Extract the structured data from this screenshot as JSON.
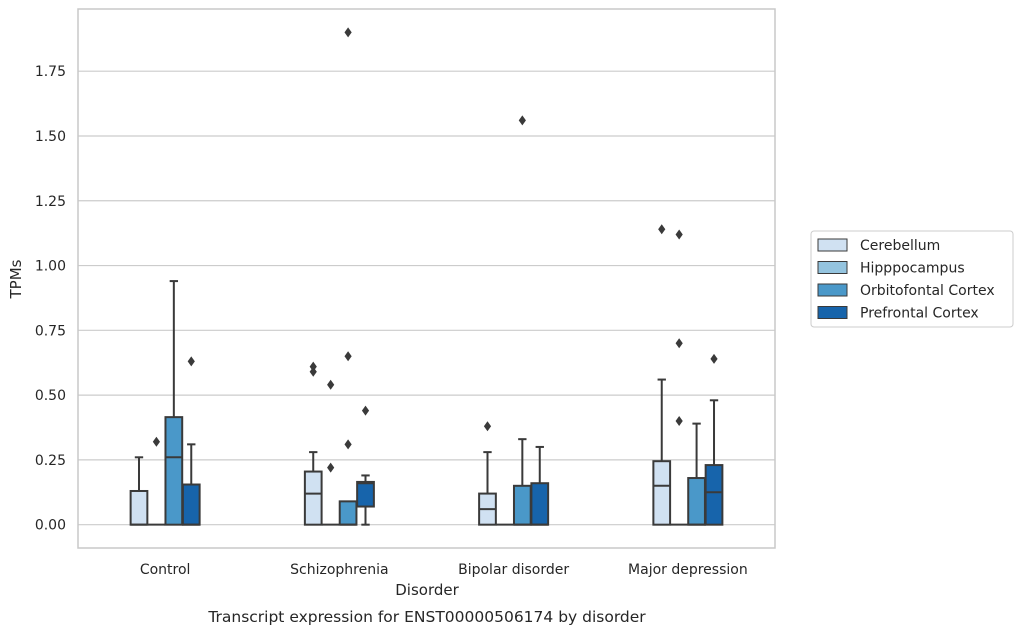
{
  "chart_data": {
    "type": "box",
    "caption": "Transcript expression for ENST00000506174 by disorder",
    "xlabel": "Disorder",
    "ylabel": "TPMs",
    "ylim": [
      -0.09,
      1.99
    ],
    "yticks": [
      "0.00",
      "0.25",
      "0.50",
      "0.75",
      "1.00",
      "1.25",
      "1.50",
      "1.75"
    ],
    "ytick_values": [
      0,
      0.25,
      0.5,
      0.75,
      1.0,
      1.25,
      1.5,
      1.75
    ],
    "grid": true,
    "legend_position": "right",
    "categories": [
      "Control",
      "Schizophrenia",
      "Bipolar disorder",
      "Major depression"
    ],
    "series": [
      {
        "name": "Cerebellum",
        "color": "#d0e1f2",
        "boxes": [
          {
            "q1": 0,
            "median": 0,
            "q3": 0.13,
            "whisker_low": 0,
            "whisker_high": 0.26,
            "outliers": []
          },
          {
            "q1": 0,
            "median": 0.12,
            "q3": 0.205,
            "whisker_low": 0,
            "whisker_high": 0.28,
            "outliers": [
              0.59,
              0.61
            ]
          },
          {
            "q1": 0,
            "median": 0.06,
            "q3": 0.12,
            "whisker_low": 0,
            "whisker_high": 0.28,
            "outliers": [
              0.38
            ]
          },
          {
            "q1": 0,
            "median": 0.15,
            "q3": 0.245,
            "whisker_low": 0,
            "whisker_high": 0.56,
            "outliers": [
              1.14
            ]
          }
        ]
      },
      {
        "name": "Hipppocampus",
        "color": "#94c4df",
        "boxes": [
          {
            "q1": 0,
            "median": 0,
            "q3": 0,
            "whisker_low": 0,
            "whisker_high": 0,
            "outliers": [
              0.32
            ]
          },
          {
            "q1": 0,
            "median": 0,
            "q3": 0,
            "whisker_low": 0,
            "whisker_high": 0,
            "outliers": [
              0.22,
              0.54
            ]
          },
          {
            "q1": 0,
            "median": 0,
            "q3": 0,
            "whisker_low": 0,
            "whisker_high": 0,
            "outliers": []
          },
          {
            "q1": 0,
            "median": 0,
            "q3": 0,
            "whisker_low": 0,
            "whisker_high": 0,
            "outliers": [
              0.4,
              0.7,
              1.12
            ]
          }
        ]
      },
      {
        "name": "Orbitofontal Cortex",
        "color": "#4a98c9",
        "boxes": [
          {
            "q1": 0,
            "median": 0.26,
            "q3": 0.415,
            "whisker_low": 0,
            "whisker_high": 0.94,
            "outliers": []
          },
          {
            "q1": 0,
            "median": 0,
            "q3": 0.09,
            "whisker_low": 0,
            "whisker_high": 0.09,
            "outliers": [
              0.31,
              0.65,
              1.9
            ]
          },
          {
            "q1": 0,
            "median": 0,
            "q3": 0.15,
            "whisker_low": 0,
            "whisker_high": 0.33,
            "outliers": [
              1.56
            ]
          },
          {
            "q1": 0,
            "median": 0,
            "q3": 0.18,
            "whisker_low": 0,
            "whisker_high": 0.39,
            "outliers": []
          }
        ]
      },
      {
        "name": "Prefrontal Cortex",
        "color": "#1764ab",
        "boxes": [
          {
            "q1": 0,
            "median": 0,
            "q3": 0.155,
            "whisker_low": 0,
            "whisker_high": 0.31,
            "outliers": [
              0.63
            ]
          },
          {
            "q1": 0.07,
            "median": 0.16,
            "q3": 0.165,
            "whisker_low": 0,
            "whisker_high": 0.19,
            "outliers": [
              0.44
            ]
          },
          {
            "q1": 0,
            "median": 0,
            "q3": 0.16,
            "whisker_low": 0,
            "whisker_high": 0.3,
            "outliers": []
          },
          {
            "q1": 0,
            "median": 0.125,
            "q3": 0.23,
            "whisker_low": 0,
            "whisker_high": 0.48,
            "outliers": [
              0.64
            ]
          }
        ]
      }
    ]
  }
}
